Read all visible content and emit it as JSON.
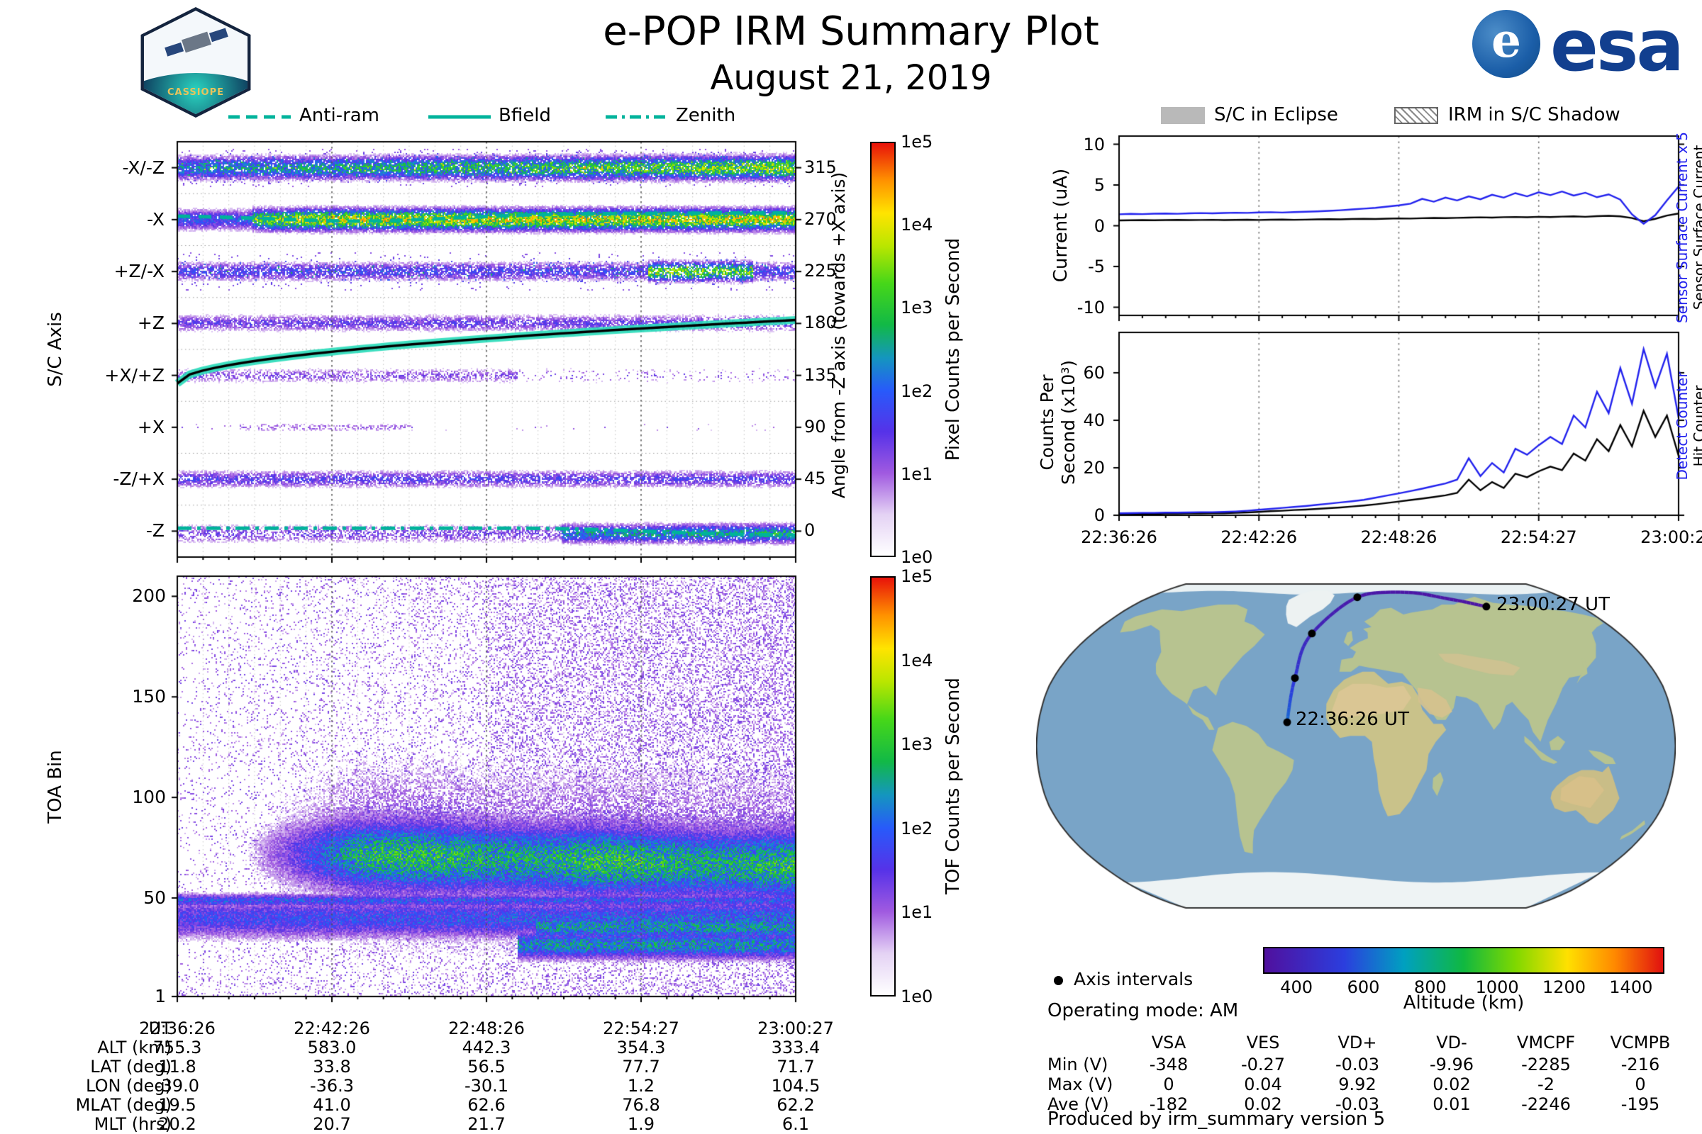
{
  "header": {
    "title": "e-POP IRM Summary Plot",
    "date": "August 21, 2019",
    "esa_text": "esa",
    "badge_text": "CASSIOPE"
  },
  "colors": {
    "accent_teal": "#00b39b",
    "series_blue": "#2222ee",
    "series_black": "#000000",
    "ocean": "#79a4c7",
    "land": "#b7c390"
  },
  "overlay_legend": {
    "items": [
      {
        "label": "Anti-ram",
        "style": "dashed"
      },
      {
        "label": "Bfield",
        "style": "solid"
      },
      {
        "label": "Zenith",
        "style": "dashdot"
      }
    ]
  },
  "status_legend": {
    "eclipse": "S/C in Eclipse",
    "shadow": "IRM in S/C Shadow"
  },
  "time_ticks": [
    "22:36:26",
    "22:42:26",
    "22:48:26",
    "22:54:27",
    "23:00:27"
  ],
  "chart_data": [
    {
      "id": "sc_axis_spectrogram",
      "type": "heatmap",
      "ylabel": "S/C Axis",
      "y_categories": [
        "-X/-Z",
        "-X",
        "+Z/-X",
        "+Z",
        "+X/+Z",
        "+X",
        "-Z/+X",
        "-Z"
      ],
      "right_axis": {
        "label": "Angle from -Z axis (towards +X axis)",
        "ticks": [
          315,
          270,
          225,
          180,
          135,
          90,
          45,
          0
        ]
      },
      "colorbar": {
        "label": "Pixel Counts per Second",
        "ticks": [
          "1e5",
          "1e4",
          "1e3",
          "1e2",
          "1e1",
          "1e0"
        ]
      },
      "x_ticks": [
        "22:36:26",
        "22:42:26",
        "22:48:26",
        "22:54:27",
        "23:00:27"
      ],
      "overlays": [
        "Anti-ram",
        "Bfield",
        "Zenith"
      ]
    },
    {
      "id": "toa_spectrogram",
      "type": "heatmap",
      "ylabel": "TOA Bin",
      "y_ticks": [
        200,
        150,
        100,
        50,
        1
      ],
      "colorbar": {
        "label": "TOF Counts per Second",
        "ticks": [
          "1e5",
          "1e4",
          "1e3",
          "1e2",
          "1e1",
          "1e0"
        ]
      },
      "x_ticks": [
        "22:36:26",
        "22:42:26",
        "22:48:26",
        "22:54:27",
        "23:00:27"
      ]
    },
    {
      "id": "current_plot",
      "type": "line",
      "ylabel": "Current (uA)",
      "ylim": [
        -11,
        11
      ],
      "y_ticks": [
        10,
        5,
        0,
        -5,
        -10
      ],
      "x_range_ut": [
        "22:36:26",
        "23:00:27"
      ],
      "series": [
        {
          "name": "Sensor Surface Current",
          "color": "#000000",
          "values": [
            0.65,
            0.68,
            0.7,
            0.67,
            0.7,
            0.72,
            0.69,
            0.71,
            0.73,
            0.7,
            0.72,
            0.74,
            0.71,
            0.74,
            0.76,
            0.73,
            0.75,
            0.78,
            0.8,
            0.78,
            0.82,
            0.85,
            0.83,
            0.87,
            0.9,
            0.88,
            0.92,
            0.95,
            0.93,
            0.97,
            1.0,
            1.03,
            1.0,
            1.05,
            1.08,
            1.05,
            1.1,
            1.07,
            1.12,
            1.15,
            1.1,
            1.18,
            1.22,
            1.15,
            0.95,
            0.55,
            0.85,
            1.25,
            1.5
          ]
        },
        {
          "name": "Sensor Surface Current x 5",
          "color": "#2222ee",
          "values": [
            1.4,
            1.45,
            1.42,
            1.48,
            1.5,
            1.47,
            1.52,
            1.55,
            1.52,
            1.57,
            1.6,
            1.58,
            1.63,
            1.66,
            1.62,
            1.68,
            1.72,
            1.76,
            1.82,
            1.9,
            2.0,
            2.1,
            2.2,
            2.35,
            2.5,
            2.7,
            3.3,
            2.95,
            3.45,
            3.1,
            3.6,
            3.25,
            3.8,
            3.45,
            4.0,
            3.6,
            4.1,
            3.75,
            4.2,
            3.7,
            4.05,
            3.5,
            3.85,
            3.2,
            1.4,
            0.25,
            1.3,
            3.1,
            4.8
          ]
        }
      ]
    },
    {
      "id": "counts_plot",
      "type": "line",
      "ylabel": "Counts Per Second (x10³)",
      "ylabel_line1": "Counts Per",
      "ylabel_line2": "Second (x10³)",
      "ylim": [
        0,
        77
      ],
      "y_ticks": [
        60,
        40,
        20,
        0
      ],
      "x_range_ut": [
        "22:36:26",
        "23:00:27"
      ],
      "series": [
        {
          "name": "Hit Counter",
          "color": "#000000",
          "values": [
            0.5,
            0.5,
            0.6,
            0.6,
            0.7,
            0.7,
            0.8,
            0.8,
            0.9,
            0.9,
            1.0,
            1.2,
            1.4,
            1.7,
            1.9,
            2.2,
            2.4,
            2.7,
            3.0,
            3.3,
            3.7,
            4.1,
            4.6,
            5.2,
            5.8,
            6.4,
            7.0,
            7.7,
            8.4,
            9.4,
            15.0,
            10.5,
            14.0,
            11.5,
            17.5,
            16.0,
            18.5,
            20.5,
            19.0,
            26.0,
            23.0,
            32.0,
            27.0,
            38.0,
            29.0,
            44.0,
            33.0,
            42.0,
            25.0
          ]
        },
        {
          "name": "Detect Counter",
          "color": "#2222ee",
          "values": [
            0.8,
            0.9,
            1.0,
            1.0,
            1.1,
            1.1,
            1.2,
            1.3,
            1.3,
            1.4,
            1.6,
            1.9,
            2.3,
            2.7,
            3.1,
            3.5,
            3.9,
            4.4,
            4.9,
            5.4,
            5.9,
            6.5,
            7.4,
            8.3,
            9.2,
            10.2,
            11.2,
            12.3,
            13.4,
            15.0,
            24.0,
            16.5,
            22.0,
            18.0,
            28.0,
            25.5,
            29.5,
            33.0,
            30.0,
            42.0,
            37.0,
            52.0,
            43.0,
            62.0,
            47.0,
            70.0,
            54.0,
            68.0,
            41.0
          ]
        }
      ]
    },
    {
      "id": "ground_track_map",
      "type": "map",
      "track": {
        "start_label": "22:36:26 UT",
        "end_label": "23:00:27 UT",
        "points_lon": [
          -39.0,
          -36.3,
          -30.1,
          1.2,
          104.5
        ],
        "points_lat": [
          11.8,
          33.8,
          56.5,
          77.7,
          71.7
        ],
        "altitudes_km": [
          755.3,
          583.0,
          442.3,
          354.3,
          333.4
        ]
      },
      "colorbar": {
        "label": "Altitude (km)",
        "ticks": [
          400,
          600,
          800,
          1000,
          1200,
          1400
        ],
        "range": [
          300,
          1500
        ]
      },
      "legend": {
        "marker": "Axis intervals"
      }
    }
  ],
  "ephemeris_table": {
    "row_labels": [
      "UT",
      "ALT (km)",
      "LAT (deg)",
      "LON (deg)",
      "MLAT (deg)",
      "MLT (hrs)"
    ],
    "rows": [
      [
        "22:36:26",
        "22:42:26",
        "22:48:26",
        "22:54:27",
        "23:00:27"
      ],
      [
        "755.3",
        "583.0",
        "442.3",
        "354.3",
        "333.4"
      ],
      [
        "11.8",
        "33.8",
        "56.5",
        "77.7",
        "71.7"
      ],
      [
        "-39.0",
        "-36.3",
        "-30.1",
        "1.2",
        "104.5"
      ],
      [
        "19.5",
        "41.0",
        "62.6",
        "76.8",
        "62.2"
      ],
      [
        "20.2",
        "20.7",
        "21.7",
        "1.9",
        "6.1"
      ]
    ]
  },
  "voltage_table": {
    "columns": [
      "VSA",
      "VES",
      "VD+",
      "VD-",
      "VMCPF",
      "VCMPB"
    ],
    "rows": [
      {
        "label": "Min (V)",
        "values": [
          "-348",
          "-0.27",
          "-0.03",
          "-9.96",
          "-2285",
          "-216"
        ]
      },
      {
        "label": "Max (V)",
        "values": [
          "0",
          "0.04",
          "9.92",
          "0.02",
          "-2",
          "0"
        ]
      },
      {
        "label": "Ave (V)",
        "values": [
          "-182",
          "0.02",
          "-0.03",
          "0.01",
          "-2246",
          "-195"
        ]
      }
    ]
  },
  "footer": {
    "operating_mode": "Operating mode: AM",
    "produced_by": "Produced by irm_summary version 5"
  }
}
